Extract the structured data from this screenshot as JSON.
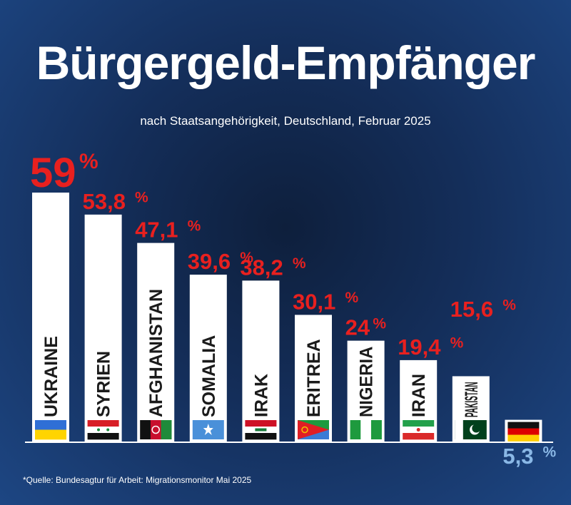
{
  "title": "Bürgergeld-Empfänger",
  "subtitle": "nach Staatsangehörigkeit, Deutschland, Februar 2025",
  "source": "*Quelle: Bundesagtur für Arbeit: Migrationsmonitor Mai 2025",
  "colors": {
    "background": "#17386b",
    "bar": "#ffffff",
    "value_red": "#e8201f",
    "value_germany": "#8ab8e6",
    "label": "#1b1b1b"
  },
  "chart_data": {
    "type": "bar",
    "title": "Bürgergeld-Empfänger",
    "subtitle": "nach Staatsangehörigkeit, Deutschland, Februar 2025",
    "categories": [
      "UKRAINE",
      "SYRIEN",
      "AFGHANISTAN",
      "SOMALIA",
      "IRAK",
      "ERITREA",
      "NIGERIA",
      "IRAN",
      "PAKISTAN",
      ""
    ],
    "values": [
      59,
      53.8,
      47.1,
      39.6,
      38.2,
      30.1,
      24,
      19.4,
      15.6,
      5.3
    ],
    "value_labels": [
      "59",
      "53,8",
      "47,1",
      "39,6",
      "38,2",
      "30,1",
      "24",
      "19,4",
      "15,6",
      "5,3"
    ],
    "unit": "%",
    "flags": [
      "ukraine-flag",
      "syria-flag",
      "afghanistan-flag",
      "somalia-flag",
      "iraq-flag",
      "eritrea-flag",
      "nigeria-flag",
      "iran-flag",
      "pakistan-flag",
      "germany-flag"
    ],
    "highlight": "Deutschland",
    "xlabel": "",
    "ylabel": "",
    "ylim": [
      0,
      59
    ],
    "grid": false,
    "legend": "none"
  }
}
